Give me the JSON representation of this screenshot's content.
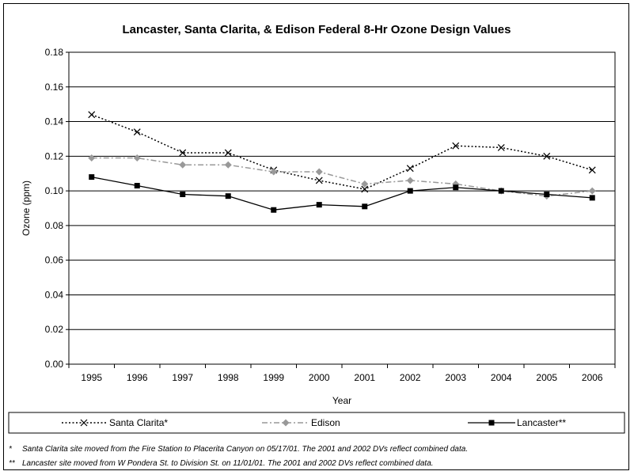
{
  "chart_data": {
    "type": "line",
    "title": "Lancaster, Santa Clarita, & Edison Federal 8-Hr Ozone Design Values",
    "xlabel": "Year",
    "ylabel": "Ozone (ppm)",
    "ylim": [
      0,
      0.18
    ],
    "y_ticks": [
      "0.00",
      "0.02",
      "0.04",
      "0.06",
      "0.08",
      "0.10",
      "0.12",
      "0.14",
      "0.16",
      "0.18"
    ],
    "categories": [
      "1995",
      "1996",
      "1997",
      "1998",
      "1999",
      "2000",
      "2001",
      "2002",
      "2003",
      "2004",
      "2005",
      "2006"
    ],
    "grid": "horizontal",
    "legend_position": "bottom",
    "series": [
      {
        "name": "Santa Clarita*",
        "color": "#000000",
        "marker": "x",
        "line": "dotted",
        "values": [
          0.144,
          0.134,
          0.122,
          0.122,
          0.112,
          0.106,
          0.101,
          0.113,
          0.126,
          0.125,
          0.12,
          0.112
        ]
      },
      {
        "name": "Edison",
        "color": "#999999",
        "marker": "diamond",
        "line": "dash-dot",
        "values": [
          0.119,
          0.119,
          0.115,
          0.115,
          0.111,
          0.111,
          0.104,
          0.106,
          0.104,
          0.1,
          0.097,
          0.1
        ]
      },
      {
        "name": "Lancaster**",
        "color": "#000000",
        "marker": "square",
        "line": "solid",
        "values": [
          0.108,
          0.103,
          0.098,
          0.097,
          0.089,
          0.092,
          0.091,
          0.1,
          0.102,
          0.1,
          0.098,
          0.096
        ]
      }
    ]
  },
  "footnotes": [
    {
      "mark": "*",
      "text": "Santa Clarita site moved from the Fire Station to Placerita Canyon on 05/17/01.  The 2001 and 2002 DVs reflect combined data."
    },
    {
      "mark": "**",
      "text": "Lancaster site moved from W Pondera St. to Division St. on 11/01/01.  The 2001 and 2002 DVs reflect combined data."
    }
  ]
}
